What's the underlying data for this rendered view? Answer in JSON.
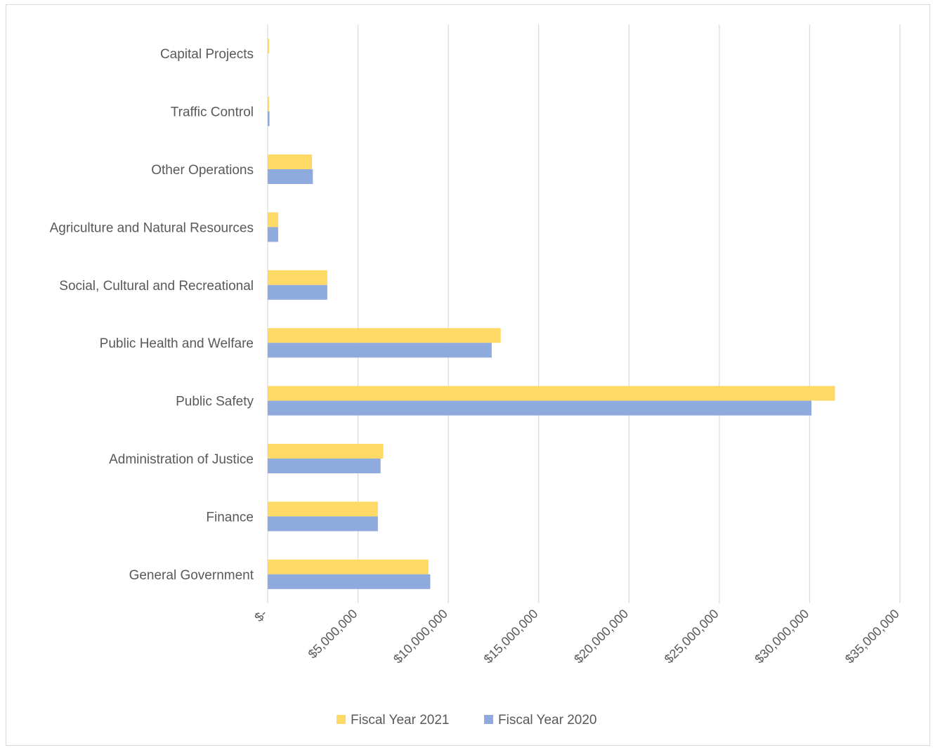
{
  "chart_data": {
    "type": "bar",
    "orientation": "horizontal",
    "title": "",
    "xlabel": "",
    "ylabel": "",
    "categories": [
      "General Government",
      "Finance",
      "Administration of Justice",
      "Public Safety",
      "Public Health and Welfare",
      "Social, Cultural and Recreational",
      "Agriculture and Natural Resources",
      "Other Operations",
      "Traffic Control",
      "Capital Projects"
    ],
    "series": [
      {
        "name": "Fiscal Year 2021",
        "color": "#FFD966",
        "values": [
          8900000,
          6100000,
          6400000,
          31400000,
          12900000,
          3300000,
          580000,
          2450000,
          80000,
          80000
        ]
      },
      {
        "name": "Fiscal Year 2020",
        "color": "#8FAADC",
        "values": [
          9000000,
          6100000,
          6250000,
          30100000,
          12400000,
          3300000,
          580000,
          2500000,
          100000,
          0
        ]
      }
    ],
    "xlim": [
      0,
      35000000
    ],
    "xticks": [
      0,
      5000000,
      10000000,
      15000000,
      20000000,
      25000000,
      30000000,
      35000000
    ],
    "xtick_labels": [
      "$-",
      "$5,000,000",
      "$10,000,000",
      "$15,000,000",
      "$20,000,000",
      "$25,000,000",
      "$30,000,000",
      "$35,000,000"
    ],
    "grid": "vertical",
    "legend_position": "bottom"
  }
}
